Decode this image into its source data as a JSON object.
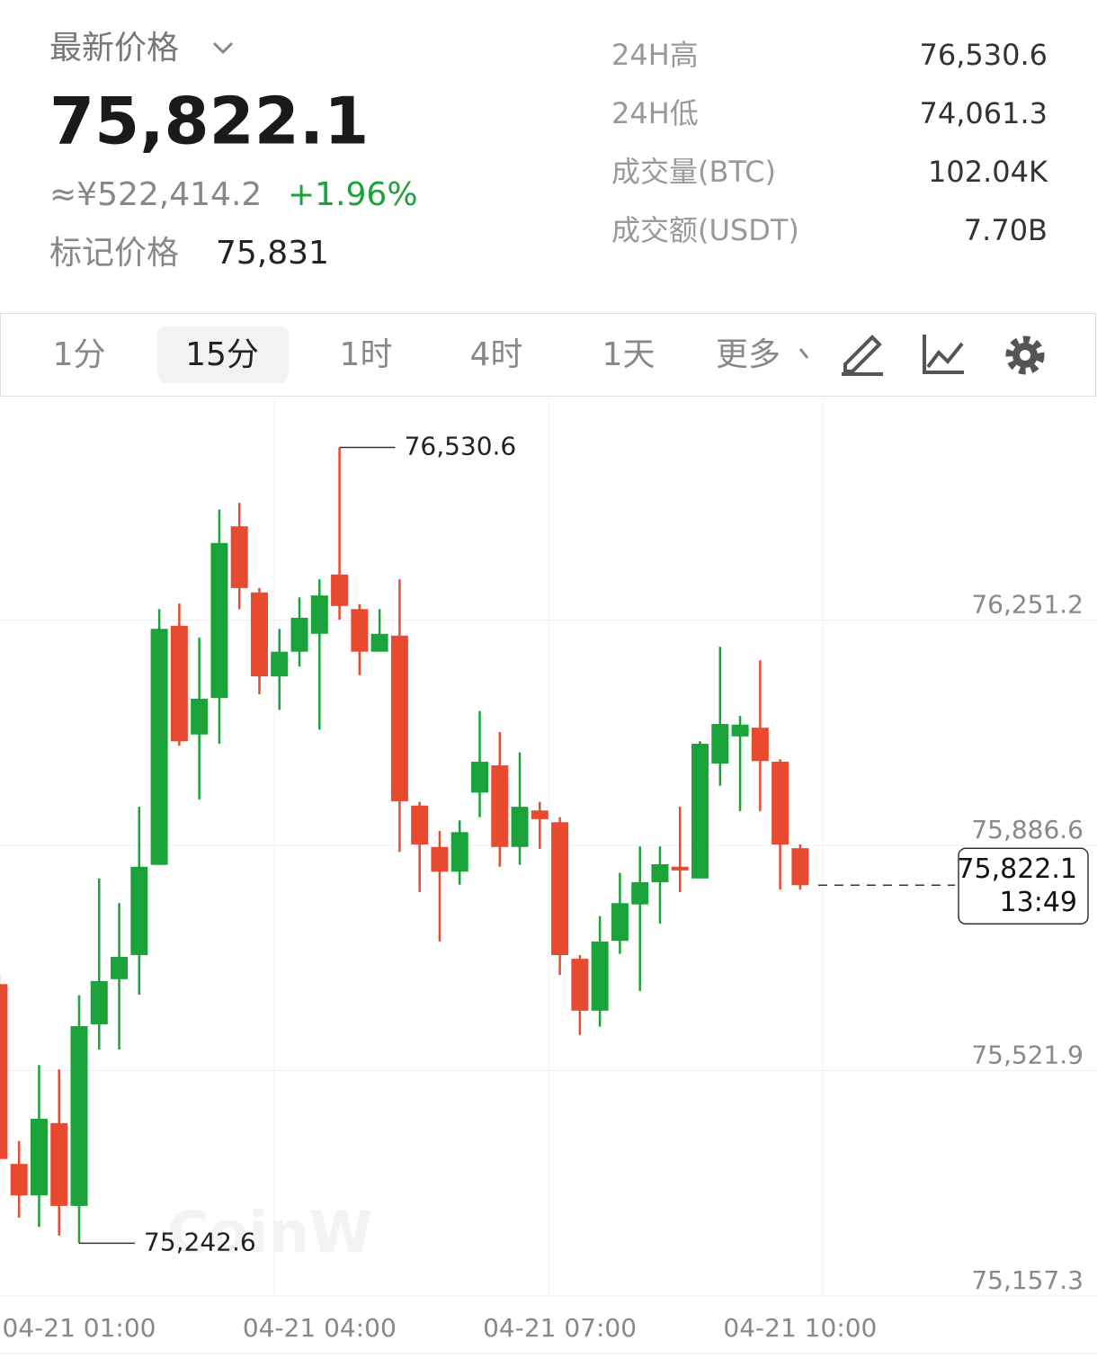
{
  "header": {
    "title": "最新价格",
    "price": "75,822.1",
    "cny": "≈¥522,414.2",
    "change": "+1.96%",
    "mark_label": "标记价格",
    "mark_price": "75,831",
    "stats": [
      {
        "label": "24H高",
        "value": "76,530.6"
      },
      {
        "label": "24H低",
        "value": "74,061.3"
      },
      {
        "label": "成交量(BTC)",
        "value": "102.04K"
      },
      {
        "label": "成交额(USDT)",
        "value": "7.70B"
      }
    ]
  },
  "tabs": {
    "items": [
      "1分",
      "15分",
      "1时",
      "4时",
      "1天",
      "更多"
    ],
    "active": 1
  },
  "watermark": "CoinW",
  "chart_data": {
    "type": "candlestick",
    "up_color": "#1aa33a",
    "down_color": "#e84a30",
    "categories": [
      null,
      null,
      null,
      null,
      "04-21 01:00",
      null,
      null,
      null,
      null,
      null,
      null,
      null,
      null,
      null,
      null,
      null,
      "04-21 04:00",
      null,
      null,
      null,
      null,
      null,
      null,
      null,
      null,
      null,
      null,
      null,
      "04-21 07:00",
      null,
      null,
      null,
      null,
      null,
      null,
      null,
      null,
      null,
      null,
      null,
      "04-21 10:00"
    ],
    "open": [
      75662,
      75371,
      75320,
      75437,
      75303,
      75597,
      75670,
      75709,
      75855,
      76242,
      76066,
      76125,
      76403,
      76296,
      76160,
      76200,
      76229,
      76325,
      76269,
      76200,
      76226,
      75951,
      75884,
      75844,
      75972,
      76016,
      75884,
      75943,
      75924,
      75703,
      75619,
      75732,
      75791,
      75827,
      75852,
      75833,
      76019,
      76063,
      76077,
      76022,
      75882
    ],
    "high": [
      75677,
      75408,
      75531,
      75524,
      75644,
      75833,
      75793,
      75949,
      76269,
      76278,
      76223,
      76430,
      76441,
      76303,
      76237,
      76288,
      76317,
      76530.6,
      76277,
      76269,
      76317,
      75957,
      75910,
      75927,
      76104,
      76070,
      76037,
      75957,
      75932,
      75709,
      75772,
      75842,
      75885,
      75885,
      75949,
      76055,
      76208,
      76096,
      76186,
      76026,
      75888
    ],
    "low": [
      75371,
      75284,
      75269,
      75255,
      75242.6,
      75556,
      75556,
      75645,
      75855,
      76048,
      75961,
      76051,
      76269,
      76131,
      76106,
      76176,
      76074,
      76252,
      76162,
      76200,
      75876,
      75811,
      75731,
      75823,
      75932,
      75852,
      75855,
      75881,
      75677,
      75580,
      75593,
      75711,
      75651,
      75760,
      75811,
      75833,
      75983,
      75942,
      75942,
      75815,
      75815
    ],
    "close": [
      75379,
      75320,
      75444,
      75303,
      75594,
      75667,
      75706,
      75852,
      76237,
      76055,
      76124,
      76376,
      76303,
      76160,
      76200,
      76255,
      76291,
      76274,
      76200,
      76229,
      75958,
      75888,
      75844,
      75908,
      76022,
      75884,
      75949,
      75929,
      75709,
      75619,
      75731,
      75793,
      75827,
      75856,
      75846,
      76051,
      76083,
      76082,
      76023,
      75888,
      75822.1
    ],
    "ylim": [
      75157.3,
      76610
    ],
    "yticks": [
      {
        "value": 76251.2,
        "label": "76,251.2"
      },
      {
        "value": 75886.6,
        "label": "75,886.6"
      },
      {
        "value": 75521.9,
        "label": "75,521.9"
      },
      {
        "value": 75157.3,
        "label": "75,157.3"
      }
    ],
    "annotations": [
      {
        "index": 17,
        "value": 76530.6,
        "label": "76,530.6"
      },
      {
        "index": 4,
        "value": 75242.6,
        "label": "75,242.6"
      }
    ],
    "last_price": {
      "value": 75822.1,
      "label": "75,822.1",
      "countdown": "13:49"
    }
  }
}
